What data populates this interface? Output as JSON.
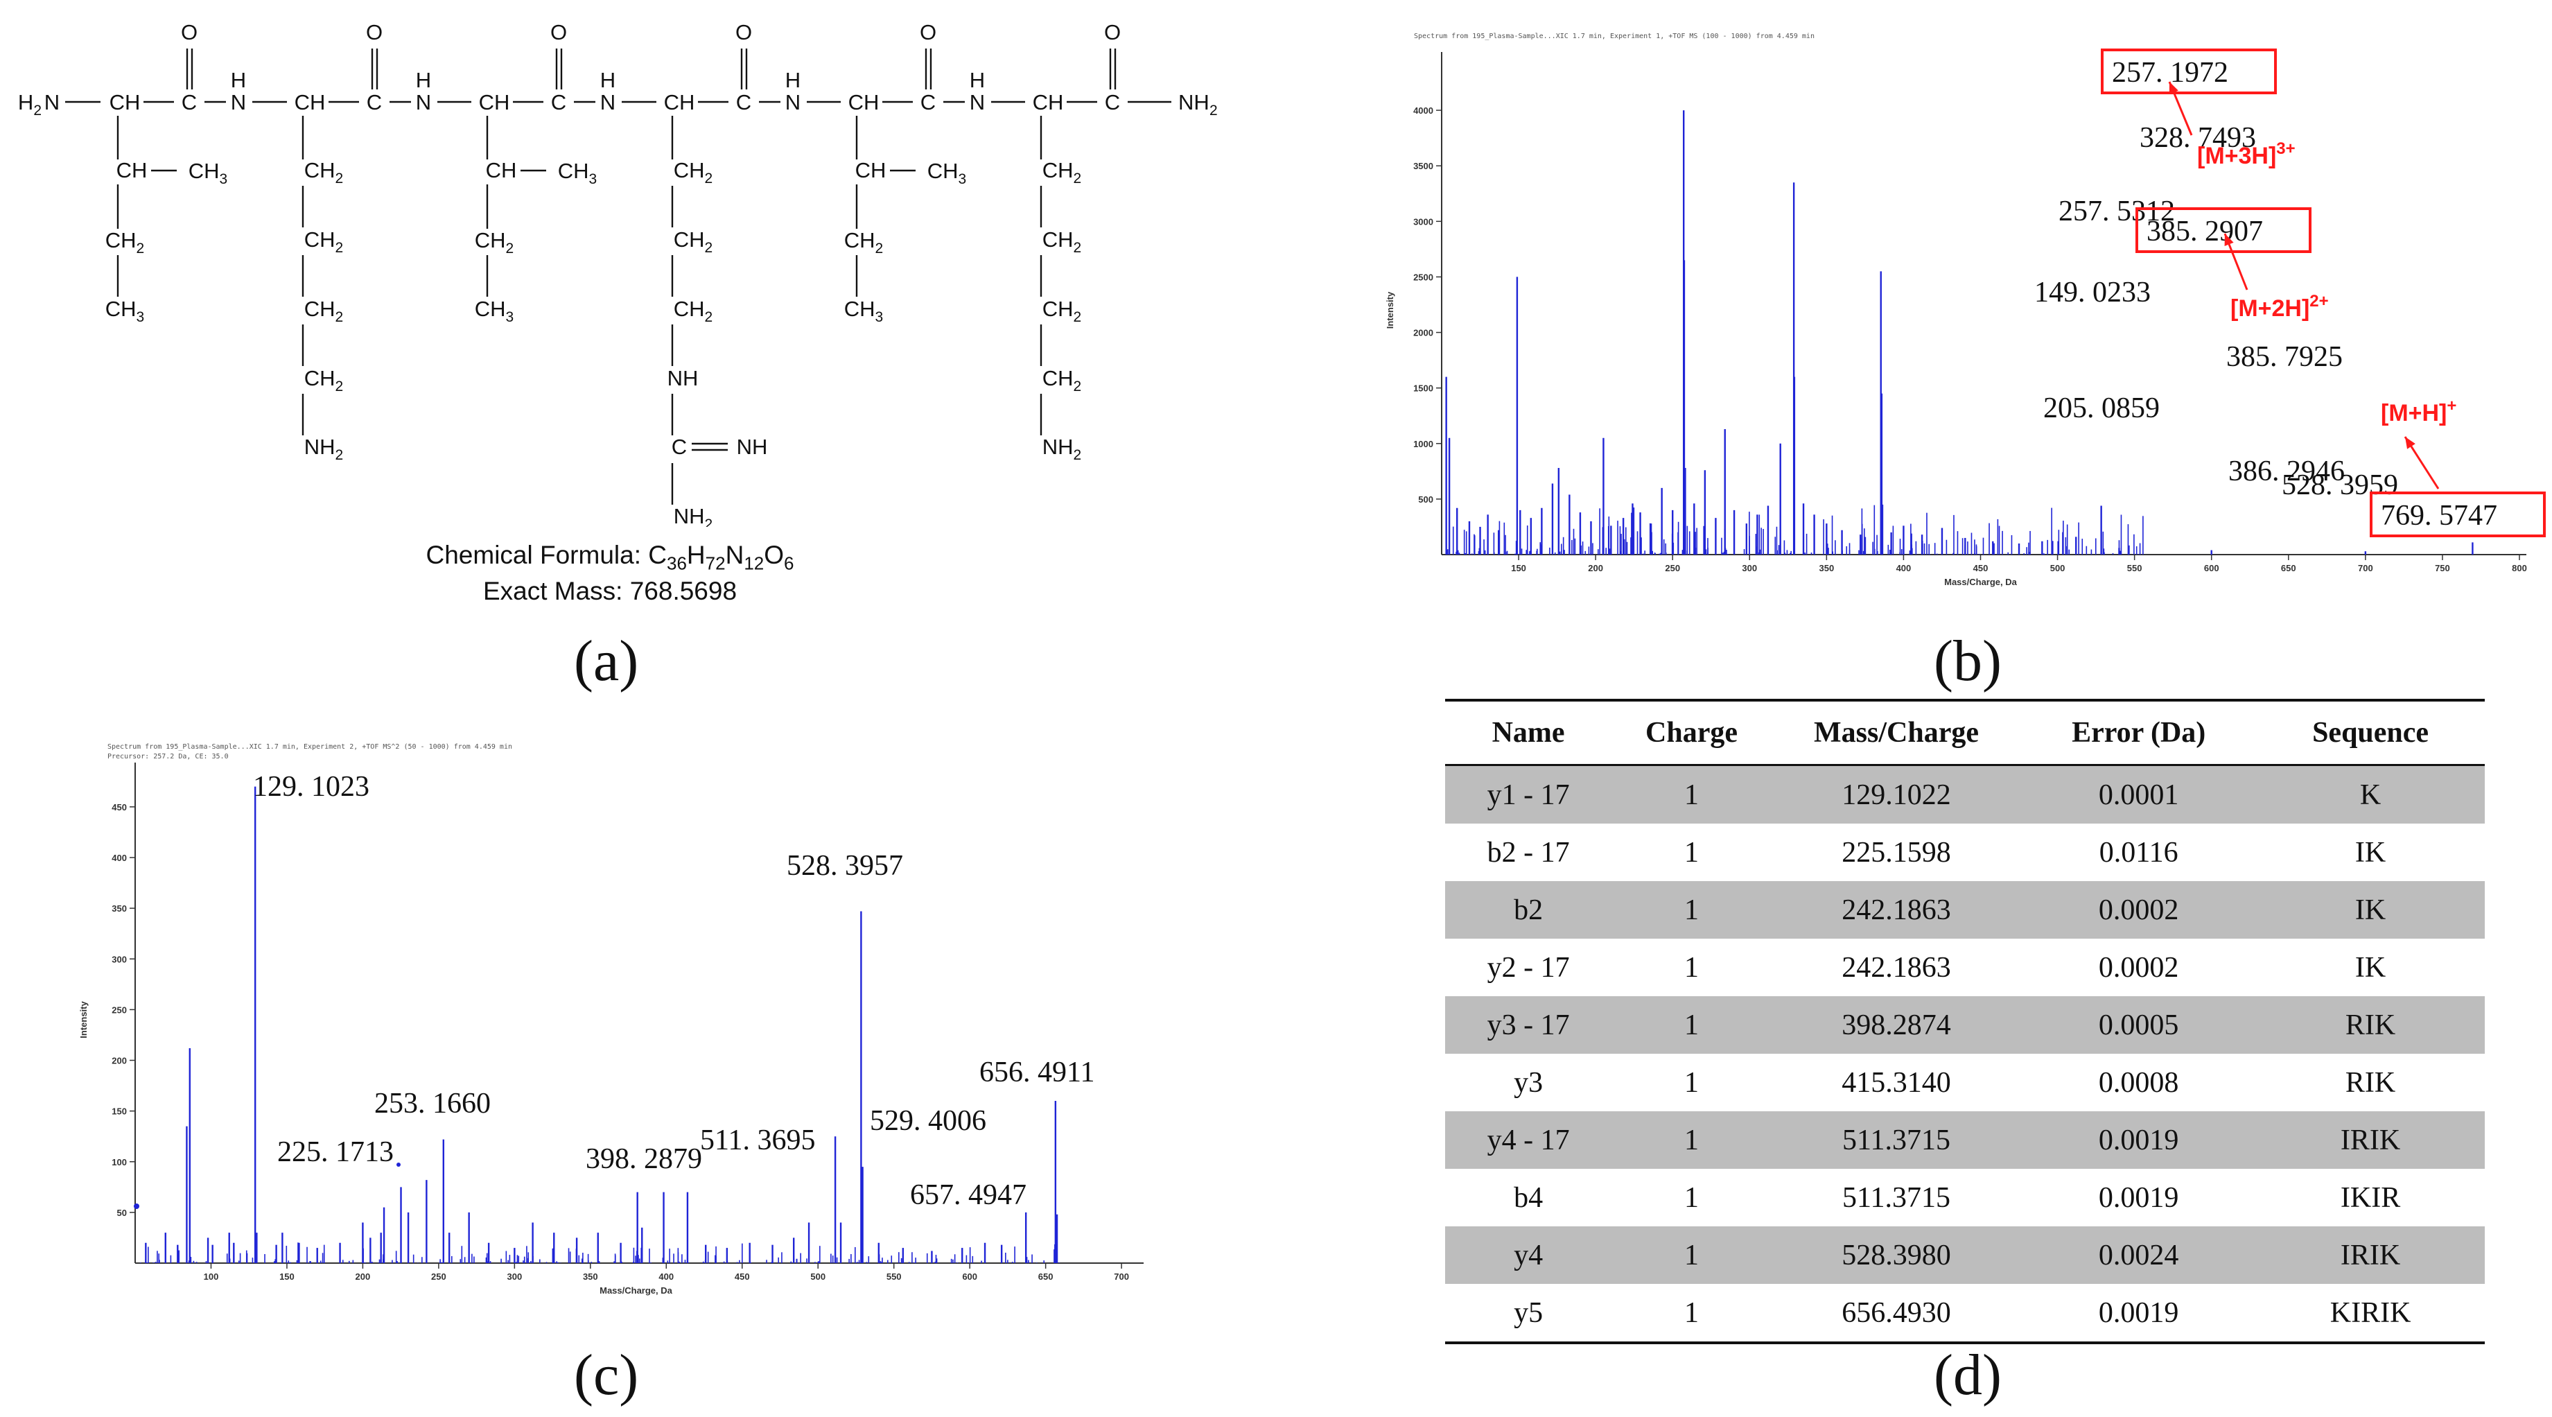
{
  "panel_labels": {
    "a": "(a)",
    "b": "(b)",
    "c": "(c)",
    "d": "(d)"
  },
  "structure": {
    "formula_label": "Chemical Formula: ",
    "formula_parts": [
      "C",
      "36",
      "H",
      "72",
      "N",
      "12",
      "O",
      "6"
    ],
    "exact_mass": "Exact Mass: 768.5698",
    "residues": [
      "Ile",
      "Lys",
      "Ile",
      "Arg",
      "Ile",
      "Lys"
    ]
  },
  "chart_data": [
    {
      "id": "b",
      "type": "bar",
      "header_text": "Spectrum from 195_Plasma-Sample...XIC 1.7 min, Experiment 1, +TOF MS (100 - 1000) from 4.459 min",
      "xlabel": "Mass/Charge, Da",
      "ylabel": "Intensity",
      "xlim": [
        100,
        800
      ],
      "ylim": [
        0,
        4400
      ],
      "x_ticks": [
        150,
        200,
        250,
        300,
        350,
        400,
        450,
        500,
        550,
        600,
        650,
        700,
        750,
        800
      ],
      "y_ticks": [
        500,
        1000,
        1500,
        2000,
        2500,
        3000,
        3500,
        4000
      ],
      "peaks": [
        {
          "x": 103,
          "y": 1600
        },
        {
          "x": 105,
          "y": 1050
        },
        {
          "x": 110,
          "y": 420
        },
        {
          "x": 118,
          "y": 300
        },
        {
          "x": 125,
          "y": 250
        },
        {
          "x": 130,
          "y": 360
        },
        {
          "x": 137,
          "y": 220
        },
        {
          "x": 149.0233,
          "y": 2500
        },
        {
          "x": 151,
          "y": 400
        },
        {
          "x": 158,
          "y": 330
        },
        {
          "x": 165,
          "y": 420
        },
        {
          "x": 172,
          "y": 640
        },
        {
          "x": 176,
          "y": 780
        },
        {
          "x": 183,
          "y": 540
        },
        {
          "x": 190,
          "y": 380
        },
        {
          "x": 197,
          "y": 300
        },
        {
          "x": 205.0859,
          "y": 1050
        },
        {
          "x": 210,
          "y": 260
        },
        {
          "x": 218,
          "y": 330
        },
        {
          "x": 224,
          "y": 460
        },
        {
          "x": 229,
          "y": 380
        },
        {
          "x": 236,
          "y": 280
        },
        {
          "x": 243,
          "y": 600
        },
        {
          "x": 250,
          "y": 400
        },
        {
          "x": 257.1972,
          "y": 4000
        },
        {
          "x": 257.5312,
          "y": 2650
        },
        {
          "x": 258.2,
          "y": 780
        },
        {
          "x": 264,
          "y": 460
        },
        {
          "x": 271,
          "y": 760
        },
        {
          "x": 278,
          "y": 330
        },
        {
          "x": 284,
          "y": 1130
        },
        {
          "x": 290,
          "y": 400
        },
        {
          "x": 298,
          "y": 280
        },
        {
          "x": 305,
          "y": 360
        },
        {
          "x": 312,
          "y": 440
        },
        {
          "x": 320,
          "y": 1000
        },
        {
          "x": 328.7493,
          "y": 3350
        },
        {
          "x": 329.08,
          "y": 1600
        },
        {
          "x": 335,
          "y": 460
        },
        {
          "x": 342,
          "y": 360
        },
        {
          "x": 350,
          "y": 280
        },
        {
          "x": 360,
          "y": 220
        },
        {
          "x": 372,
          "y": 180
        },
        {
          "x": 385.2907,
          "y": 2550
        },
        {
          "x": 385.7925,
          "y": 1450
        },
        {
          "x": 386.2946,
          "y": 450
        },
        {
          "x": 392,
          "y": 200
        },
        {
          "x": 400,
          "y": 260
        },
        {
          "x": 412,
          "y": 180
        },
        {
          "x": 425,
          "y": 240
        },
        {
          "x": 440,
          "y": 150
        },
        {
          "x": 458,
          "y": 120
        },
        {
          "x": 475,
          "y": 100
        },
        {
          "x": 490,
          "y": 120
        },
        {
          "x": 512,
          "y": 160
        },
        {
          "x": 528.3959,
          "y": 440
        },
        {
          "x": 540,
          "y": 60
        },
        {
          "x": 600,
          "y": 40
        },
        {
          "x": 700,
          "y": 30
        },
        {
          "x": 769.5747,
          "y": 110
        }
      ],
      "peak_labels": [
        {
          "text": "257. 1972",
          "boxed": true
        },
        {
          "text": "328. 7493",
          "boxed": false
        },
        {
          "text": "257. 5312",
          "boxed": false
        },
        {
          "text": "385. 2907",
          "boxed": true
        },
        {
          "text": "149. 0233",
          "boxed": false
        },
        {
          "text": "385. 7925",
          "boxed": false
        },
        {
          "text": "205. 0859",
          "boxed": false
        },
        {
          "text": "386. 2946",
          "boxed": false
        },
        {
          "text": "528. 3959",
          "boxed": false
        },
        {
          "text": "769. 5747",
          "boxed": true
        }
      ],
      "annotations": [
        {
          "base": "[M+3H]",
          "sup": "3+"
        },
        {
          "base": "[M+2H]",
          "sup": "2+"
        },
        {
          "base": "[M+H]",
          "sup": "+"
        }
      ],
      "annotation_color": "#ff1a1a"
    },
    {
      "id": "c",
      "type": "bar",
      "header_text": "Spectrum from 195_Plasma-Sample...XIC 1.7 min, Experiment 2, +TOF MS^2 (50 - 1000) from 4.459 min",
      "header_text2": "Precursor: 257.2 Da, CE: 35.0",
      "xlabel": "Mass/Charge, Da",
      "ylabel": "Intensity",
      "xlim": [
        50,
        710
      ],
      "ylim": [
        0,
        480
      ],
      "x_ticks": [
        100,
        150,
        200,
        250,
        300,
        350,
        400,
        450,
        500,
        550,
        600,
        650,
        700
      ],
      "y_ticks": [
        50,
        100,
        150,
        200,
        250,
        300,
        350,
        400,
        450
      ],
      "peaks": [
        {
          "x": 57,
          "y": 20
        },
        {
          "x": 70,
          "y": 30
        },
        {
          "x": 78,
          "y": 18
        },
        {
          "x": 84,
          "y": 135
        },
        {
          "x": 86,
          "y": 212
        },
        {
          "x": 98,
          "y": 25
        },
        {
          "x": 101,
          "y": 18
        },
        {
          "x": 112,
          "y": 30
        },
        {
          "x": 115,
          "y": 20
        },
        {
          "x": 129.1023,
          "y": 470
        },
        {
          "x": 130.1,
          "y": 30
        },
        {
          "x": 143,
          "y": 18
        },
        {
          "x": 147,
          "y": 30
        },
        {
          "x": 158,
          "y": 20
        },
        {
          "x": 170,
          "y": 15
        },
        {
          "x": 185,
          "y": 20
        },
        {
          "x": 200,
          "y": 40
        },
        {
          "x": 205,
          "y": 25
        },
        {
          "x": 212,
          "y": 30
        },
        {
          "x": 214,
          "y": 55
        },
        {
          "x": 225.1713,
          "y": 75
        },
        {
          "x": 230,
          "y": 50
        },
        {
          "x": 242,
          "y": 82
        },
        {
          "x": 253.166,
          "y": 122
        },
        {
          "x": 257,
          "y": 30
        },
        {
          "x": 270,
          "y": 50
        },
        {
          "x": 283,
          "y": 20
        },
        {
          "x": 300,
          "y": 15
        },
        {
          "x": 312,
          "y": 40
        },
        {
          "x": 326,
          "y": 30
        },
        {
          "x": 341,
          "y": 25
        },
        {
          "x": 355,
          "y": 30
        },
        {
          "x": 370,
          "y": 20
        },
        {
          "x": 381,
          "y": 70
        },
        {
          "x": 384,
          "y": 35
        },
        {
          "x": 398.2879,
          "y": 70
        },
        {
          "x": 414,
          "y": 70
        },
        {
          "x": 426,
          "y": 18
        },
        {
          "x": 440,
          "y": 15
        },
        {
          "x": 455,
          "y": 20
        },
        {
          "x": 470,
          "y": 18
        },
        {
          "x": 484,
          "y": 25
        },
        {
          "x": 494,
          "y": 40
        },
        {
          "x": 511.3695,
          "y": 125
        },
        {
          "x": 515,
          "y": 40
        },
        {
          "x": 528.3957,
          "y": 347
        },
        {
          "x": 529.4006,
          "y": 95
        },
        {
          "x": 540,
          "y": 20
        },
        {
          "x": 556,
          "y": 15
        },
        {
          "x": 575,
          "y": 12
        },
        {
          "x": 595,
          "y": 15
        },
        {
          "x": 610,
          "y": 20
        },
        {
          "x": 621,
          "y": 18
        },
        {
          "x": 637,
          "y": 50
        },
        {
          "x": 656.4911,
          "y": 160
        },
        {
          "x": 657.4947,
          "y": 48
        }
      ],
      "peak_labels": [
        {
          "text": "129. 1023"
        },
        {
          "text": "528. 3957"
        },
        {
          "text": "656. 4911"
        },
        {
          "text": "253. 1660"
        },
        {
          "text": "511. 3695"
        },
        {
          "text": "529. 4006"
        },
        {
          "text": "225. 1713"
        },
        {
          "text": "398. 2879"
        },
        {
          "text": "657. 4947"
        }
      ]
    }
  ],
  "table": {
    "headers": [
      "Name",
      "Charge",
      "Mass/Charge",
      "Error (Da)",
      "Sequence"
    ],
    "rows": [
      [
        "y1 - 17",
        "1",
        "129.1022",
        "0.0001",
        "K"
      ],
      [
        "b2 - 17",
        "1",
        "225.1598",
        "0.0116",
        "IK"
      ],
      [
        "b2",
        "1",
        "242.1863",
        "0.0002",
        "IK"
      ],
      [
        "y2 - 17",
        "1",
        "242.1863",
        "0.0002",
        "IK"
      ],
      [
        "y3 - 17",
        "1",
        "398.2874",
        "0.0005",
        "RIK"
      ],
      [
        "y3",
        "1",
        "415.3140",
        "0.0008",
        "RIK"
      ],
      [
        "y4 - 17",
        "1",
        "511.3715",
        "0.0019",
        "IRIK"
      ],
      [
        "b4",
        "1",
        "511.3715",
        "0.0019",
        "IKIR"
      ],
      [
        "y4",
        "1",
        "528.3980",
        "0.0024",
        "IRIK"
      ],
      [
        "y5",
        "1",
        "656.4930",
        "0.0019",
        "KIRIK"
      ]
    ]
  },
  "colors": {
    "spectrum": "#1f24d6",
    "shade": "#bdbdbd",
    "red": "#ff1a1a"
  }
}
